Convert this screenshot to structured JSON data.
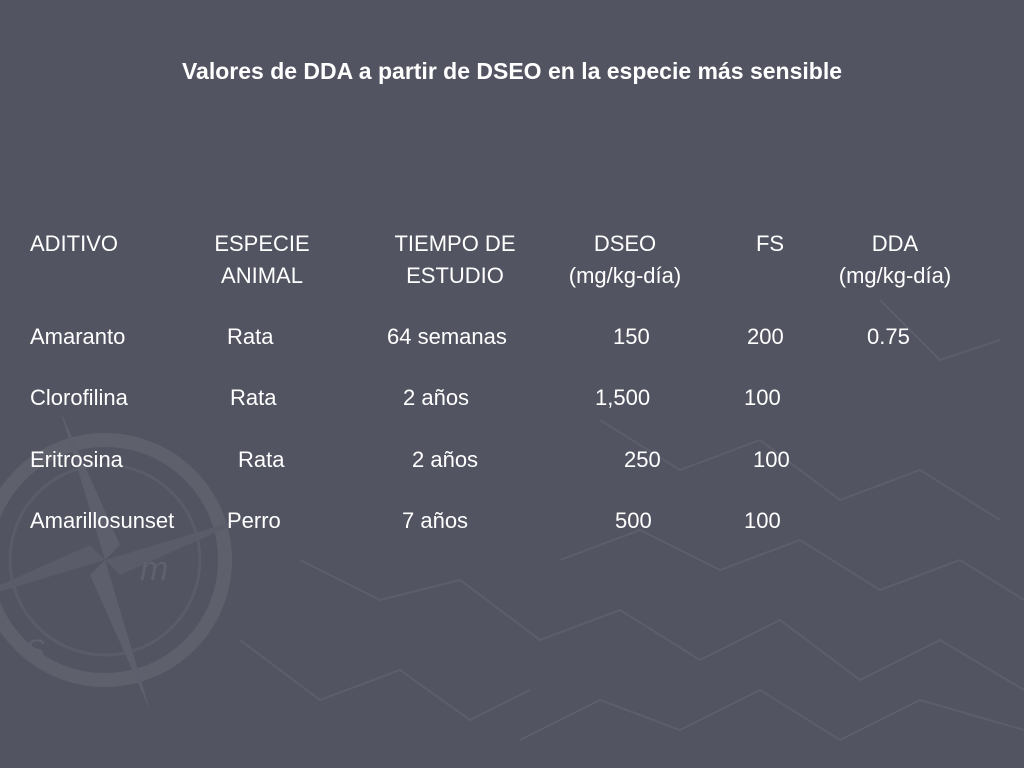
{
  "slide": {
    "title": "Valores de DDA a partir de DSEO en la especie más sensible"
  },
  "table": {
    "headers": [
      {
        "line1": "ADITIVO",
        "line2": ""
      },
      {
        "line1": "ESPECIE",
        "line2": "ANIMAL"
      },
      {
        "line1": "TIEMPO DE",
        "line2": "ESTUDIO"
      },
      {
        "line1": "DSEO",
        "line2": "(mg/kg-día)"
      },
      {
        "line1": "FS",
        "line2": ""
      },
      {
        "line1": "DDA",
        "line2": "(mg/kg-día)"
      }
    ],
    "rows": [
      {
        "aditivo": "Amaranto",
        "especie": "Rata",
        "tiempo": "64 semanas",
        "dseo": "150",
        "fs": "200",
        "dda": "0.75"
      },
      {
        "aditivo": "Clorofilina",
        "especie": "Rata",
        "tiempo": "2 años",
        "dseo": "1,500",
        "fs": "100",
        "dda": ""
      },
      {
        "aditivo": "Eritrosina",
        "especie": "Rata",
        "tiempo": "2 años",
        "dseo": "250",
        "fs": "100",
        "dda": ""
      },
      {
        "aditivo": "Amarillosunset",
        "especie": "Perro",
        "tiempo": "7 años",
        "dseo": "500",
        "fs": "100",
        "dda": ""
      }
    ]
  },
  "theme": {
    "background": "#525461",
    "text": "#ffffff",
    "decoration": "compass-rose-and-map-lines"
  }
}
